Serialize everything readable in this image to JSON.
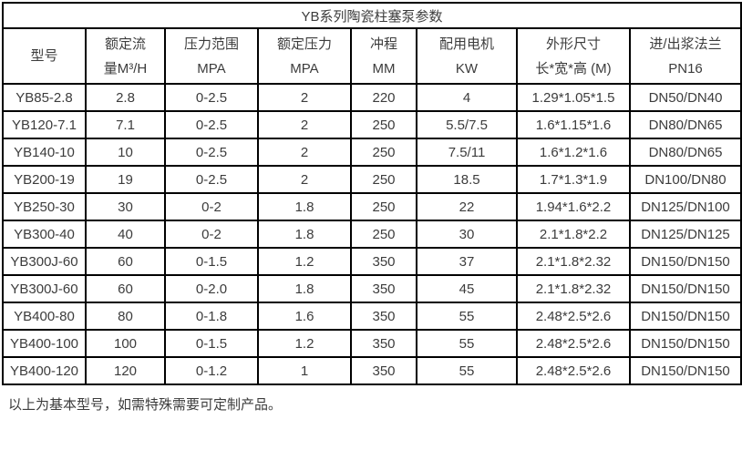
{
  "page": {
    "title": "YB系列陶瓷柱塞泵参数",
    "footer_note": "以上为基本型号，如需特殊需要可定制产品。"
  },
  "table": {
    "columns": [
      {
        "line1": "型号",
        "line2": ""
      },
      {
        "line1": "额定流",
        "line2": "量M³/H"
      },
      {
        "line1": "压力范围",
        "line2": "MPA"
      },
      {
        "line1": "额定压力",
        "line2": "MPA"
      },
      {
        "line1": "冲程",
        "line2": "MM"
      },
      {
        "line1": "配用电机",
        "line2": "KW"
      },
      {
        "line1": "外形尺寸",
        "line2": "长*宽*高 (M)"
      },
      {
        "line1": "进/出浆法兰",
        "line2": "PN16"
      }
    ],
    "rows": [
      [
        "YB85-2.8",
        "2.8",
        "0-2.5",
        "2",
        "220",
        "4",
        "1.29*1.05*1.5",
        "DN50/DN40"
      ],
      [
        "YB120-7.1",
        "7.1",
        "0-2.5",
        "2",
        "250",
        "5.5/7.5",
        "1.6*1.15*1.6",
        "DN80/DN65"
      ],
      [
        "YB140-10",
        "10",
        "0-2.5",
        "2",
        "250",
        "7.5/11",
        "1.6*1.2*1.6",
        "DN80/DN65"
      ],
      [
        "YB200-19",
        "19",
        "0-2.5",
        "2",
        "250",
        "18.5",
        "1.7*1.3*1.9",
        "DN100/DN80"
      ],
      [
        "YB250-30",
        "30",
        "0-2",
        "1.8",
        "250",
        "22",
        "1.94*1.6*2.2",
        "DN125/DN100"
      ],
      [
        "YB300-40",
        "40",
        "0-2",
        "1.8",
        "250",
        "30",
        "2.1*1.8*2.2",
        "DN125/DN125"
      ],
      [
        "YB300J-60",
        "60",
        "0-1.5",
        "1.2",
        "350",
        "37",
        "2.1*1.8*2.32",
        "DN150/DN150"
      ],
      [
        "YB300J-60",
        "60",
        "0-2.0",
        "1.8",
        "350",
        "45",
        "2.1*1.8*2.32",
        "DN150/DN150"
      ],
      [
        "YB400-80",
        "80",
        "0-1.8",
        "1.6",
        "350",
        "55",
        "2.48*2.5*2.6",
        "DN150/DN150"
      ],
      [
        "YB400-100",
        "100",
        "0-1.5",
        "1.2",
        "350",
        "55",
        "2.48*2.5*2.6",
        "DN150/DN150"
      ],
      [
        "YB400-120",
        "120",
        "0-1.2",
        "1",
        "350",
        "55",
        "2.48*2.5*2.6",
        "DN150/DN150"
      ]
    ]
  },
  "colors": {
    "border": "#000000",
    "text": "#3c3c3c",
    "background": "#ffffff"
  }
}
